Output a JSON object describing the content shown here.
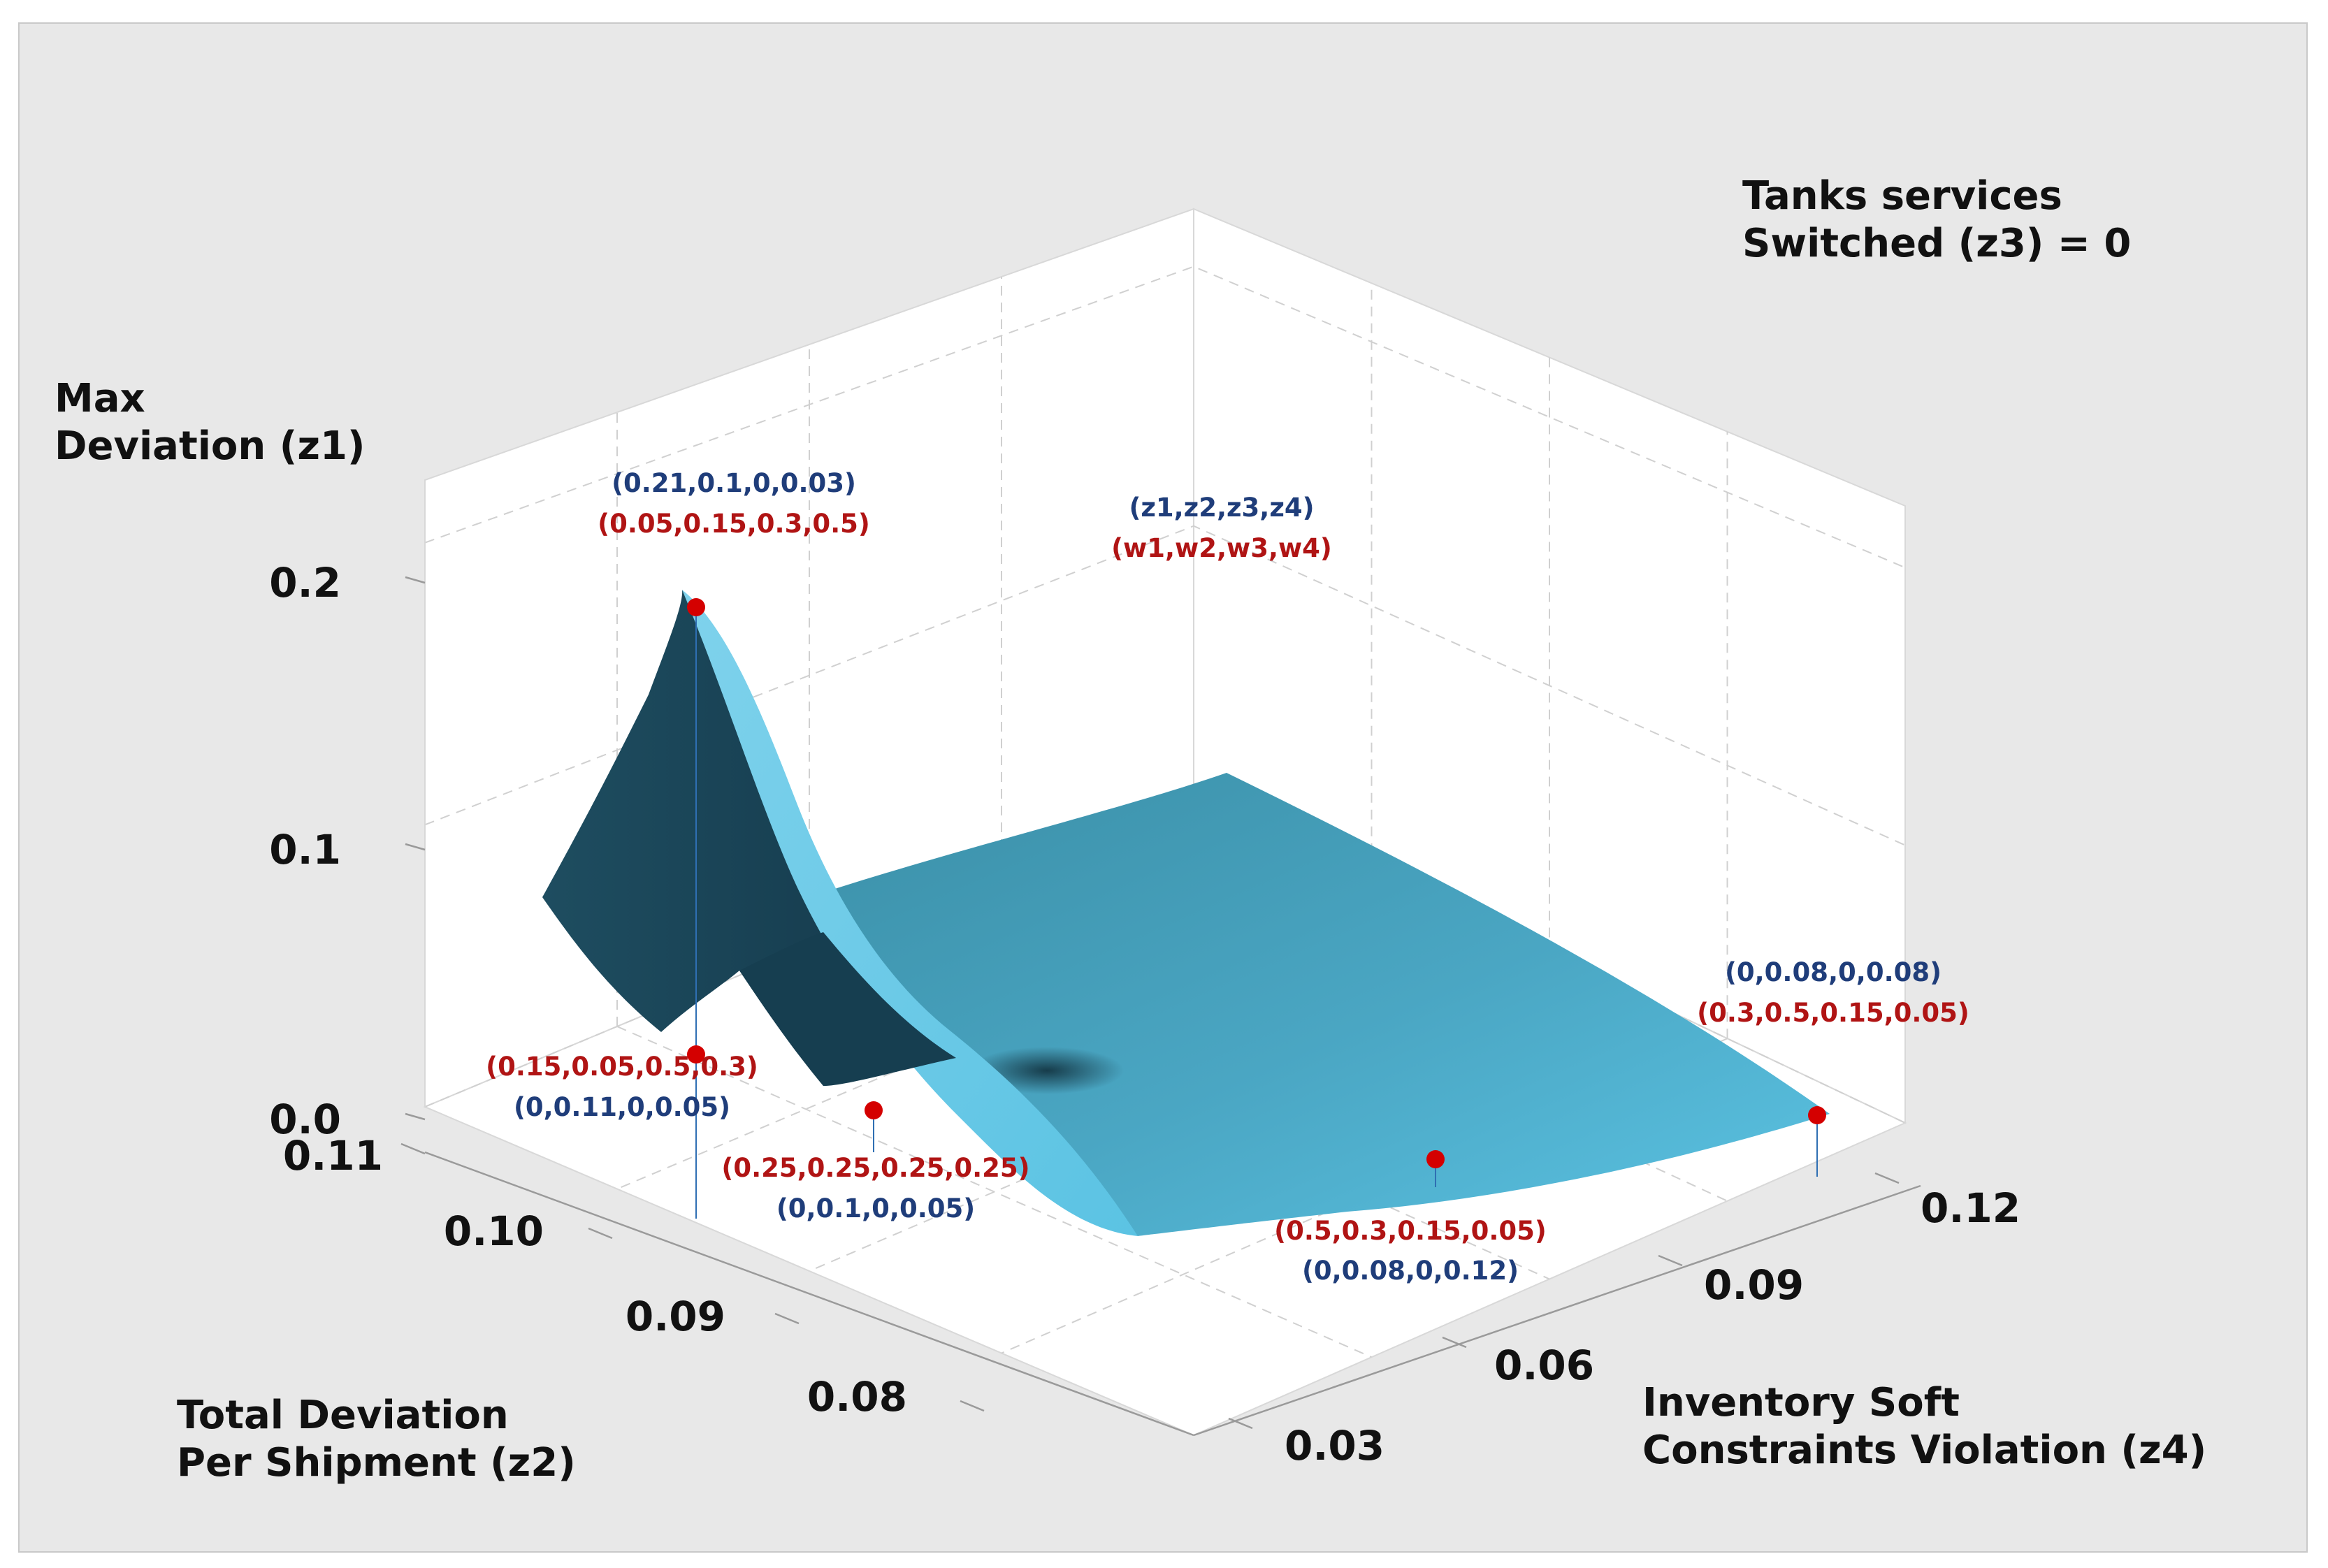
{
  "chart_data": {
    "type": "surface3d",
    "title": "Tanks services Switched (z3) = 0",
    "title_lines": [
      "Tanks services",
      "Switched (z3) = 0"
    ],
    "zlabel_lines": [
      "Max",
      "Deviation (z1)"
    ],
    "xlabel_lines": [
      "Total Deviation",
      "Per Shipment (z2)"
    ],
    "ylabel_lines": [
      "Inventory Soft",
      "Constraints Violation (z4)"
    ],
    "z_ticks": [
      "0.0",
      "0.1",
      "0.2"
    ],
    "x_ticks": [
      "0.11",
      "0.10",
      "0.09",
      "0.08"
    ],
    "y_ticks": [
      "0.03",
      "0.06",
      "0.09",
      "0.12"
    ],
    "zlim": [
      0,
      0.22
    ],
    "legend": {
      "objectives": "(z1,z2,z3,z4)",
      "weights": "(w1,w2,w3,w4)"
    },
    "colors": {
      "objective_text": "#1f3d7a",
      "weight_text": "#b01414",
      "marker": "#d40000",
      "surface_light": "#5bc3e3",
      "surface_mid": "#3a8ea6",
      "surface_dark": "#14384a"
    },
    "points": [
      {
        "z": [
          0.21,
          0.1,
          0,
          0.03
        ],
        "objectives": "(0.21,0.1,0,0.03)",
        "weights": "(0.05,0.15,0.3,0.5)"
      },
      {
        "z": [
          0,
          0.11,
          0,
          0.05
        ],
        "objectives": "(0,0.11,0,0.05)",
        "weights": "(0.15,0.05,0.5,0.3)"
      },
      {
        "z": [
          0,
          0.1,
          0,
          0.05
        ],
        "objectives": "(0,0.1,0,0.05)",
        "weights": "(0.25,0.25,0.25,0.25)"
      },
      {
        "z": [
          0,
          0.08,
          0,
          0.12
        ],
        "objectives": "(0,0.08,0,0.12)",
        "weights": "(0.5,0.3,0.15,0.05)"
      },
      {
        "z": [
          0,
          0.08,
          0,
          0.08
        ],
        "objectives": "(0,0.08,0,0.08)",
        "weights": "(0.3,0.5,0.15,0.05)"
      }
    ]
  }
}
